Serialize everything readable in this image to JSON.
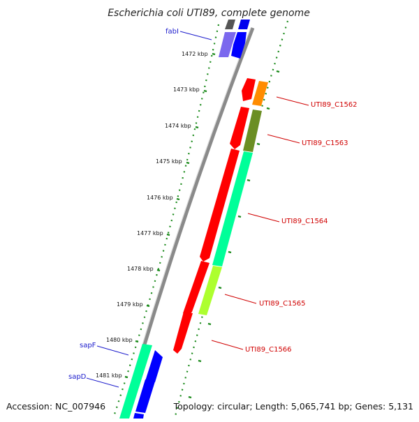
{
  "title": "Escherichia coli UTI89, complete genome",
  "footer": {
    "accession": "Accession: NC_007946",
    "topology": "Topology: circular; Length: 5,065,741 bp; Genes: 5,131"
  },
  "ruler_labels": [
    "1472 kbp",
    "1473 kbp",
    "1474 kbp",
    "1475 kbp",
    "1476 kbp",
    "1477 kbp",
    "1478 kbp",
    "1479 kbp",
    "1480 kbp",
    "1481 kbp"
  ],
  "gene_labels": {
    "fabI": "fabI",
    "sapF": "sapF",
    "sapD": "sapD",
    "c1562": "UTI89_C1562",
    "c1563": "UTI89_C1563",
    "c1564": "UTI89_C1564",
    "c1565": "UTI89_C1565",
    "c1566": "UTI89_C1566"
  },
  "colors": {
    "backbone": "#888888",
    "ruler_ticks": "#1a8a1a",
    "label_blue": "#1a1acc",
    "label_red": "#d00000",
    "red_gene": "#ff0000",
    "orange_gene": "#ff8c00",
    "olive_gene": "#6b8e23",
    "spring_green_gene": "#00ff99",
    "yellow_green_gene": "#adff2f",
    "blue_gene": "#0000ff",
    "purple_gene": "#7b68ee"
  }
}
